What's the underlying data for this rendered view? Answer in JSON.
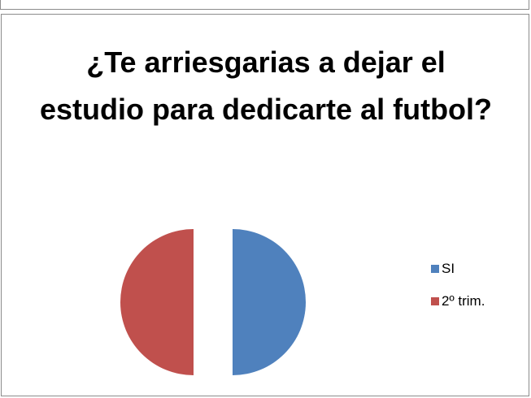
{
  "chart_data": {
    "type": "pie",
    "title": "¿Te arriesgarias a dejar el estudio para dedicarte al futbol?",
    "categories": [
      "SI",
      "2º trim."
    ],
    "values": [
      50,
      50
    ],
    "colors": [
      "#4f81bd",
      "#c0504d"
    ],
    "exploded": true,
    "legend_position": "right"
  }
}
